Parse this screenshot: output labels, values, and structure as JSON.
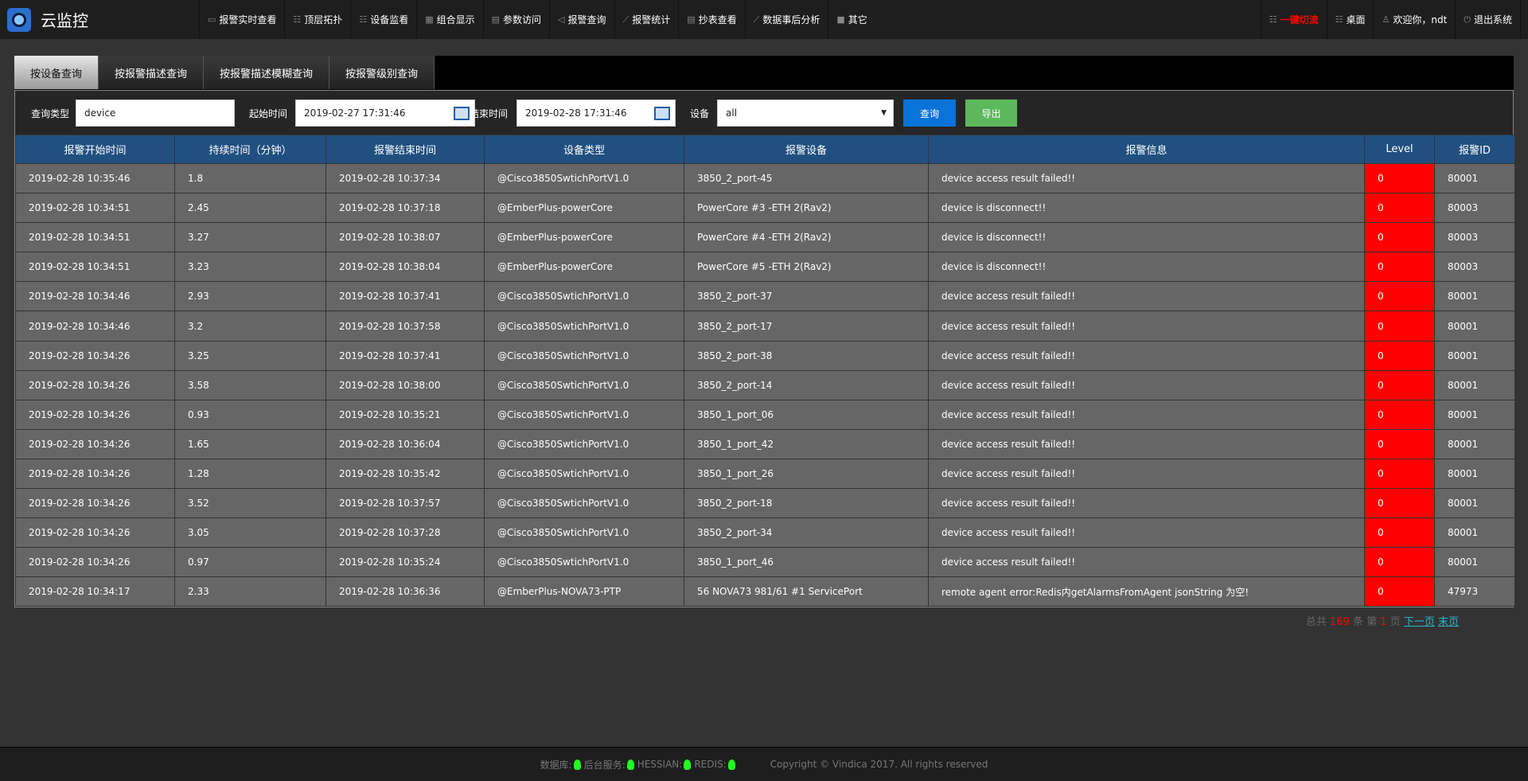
{
  "app": {
    "title": "云监控"
  },
  "nav": {
    "items": [
      {
        "icon": "monitor-icon",
        "label": "报警实时查看"
      },
      {
        "icon": "list-icon",
        "label": "顶层拓扑"
      },
      {
        "icon": "list-icon",
        "label": "设备监看"
      },
      {
        "icon": "grid-icon",
        "label": "组合显示"
      },
      {
        "icon": "doc-icon",
        "label": "参数访问"
      },
      {
        "icon": "speaker-icon",
        "label": "报警查询"
      },
      {
        "icon": "chart-icon",
        "label": "报警统计"
      },
      {
        "icon": "doc-icon",
        "label": "抄表查看"
      },
      {
        "icon": "chart-icon",
        "label": "数据事后分析"
      },
      {
        "icon": "apps-icon",
        "label": "其它"
      }
    ],
    "right": [
      {
        "icon": "list-icon",
        "label": "一键切流",
        "color": "#ff0000"
      },
      {
        "icon": "list-icon",
        "label": "桌面"
      },
      {
        "icon": "users-icon",
        "label": "欢迎你，ndt"
      },
      {
        "icon": "power-icon",
        "label": "退出系统"
      }
    ]
  },
  "tabs": [
    {
      "label": "按设备查询",
      "active": true
    },
    {
      "label": "按报警描述查询"
    },
    {
      "label": "按报警描述模糊查询"
    },
    {
      "label": "按报警级别查询"
    }
  ],
  "filter": {
    "type_label": "查询类型",
    "type_value": "device",
    "start_label": "起始时间",
    "start_value": "2019-02-27 17:31:46",
    "end_label": "结束时间",
    "end_value": "2019-02-28 17:31:46",
    "device_label": "设备",
    "device_value": "all",
    "query_button": "查询",
    "export_button": "导出",
    "query_color": "#0a73d9",
    "export_color": "#5cb85c"
  },
  "table": {
    "headers": [
      "报警开始时间",
      "持续时间（分钟）",
      "报警结束时间",
      "设备类型",
      "报警设备",
      "报警信息",
      "Level",
      "报警ID"
    ],
    "rows": [
      [
        "2019-02-28 10:35:46",
        "1.8",
        "2019-02-28 10:37:34",
        "@Cisco3850SwtichPortV1.0",
        "3850_2_port-45",
        "device access result failed!!",
        "0",
        "80001"
      ],
      [
        "2019-02-28 10:34:51",
        "2.45",
        "2019-02-28 10:37:18",
        "@EmberPlus-powerCore",
        "PowerCore #3 -ETH 2(Rav2)",
        "device is disconnect!!",
        "0",
        "80003"
      ],
      [
        "2019-02-28 10:34:51",
        "3.27",
        "2019-02-28 10:38:07",
        "@EmberPlus-powerCore",
        "PowerCore #4 -ETH 2(Rav2)",
        "device is disconnect!!",
        "0",
        "80003"
      ],
      [
        "2019-02-28 10:34:51",
        "3.23",
        "2019-02-28 10:38:04",
        "@EmberPlus-powerCore",
        "PowerCore #5 -ETH 2(Rav2)",
        "device is disconnect!!",
        "0",
        "80003"
      ],
      [
        "2019-02-28 10:34:46",
        "2.93",
        "2019-02-28 10:37:41",
        "@Cisco3850SwtichPortV1.0",
        "3850_2_port-37",
        "device access result failed!!",
        "0",
        "80001"
      ],
      [
        "2019-02-28 10:34:46",
        "3.2",
        "2019-02-28 10:37:58",
        "@Cisco3850SwtichPortV1.0",
        "3850_2_port-17",
        "device access result failed!!",
        "0",
        "80001"
      ],
      [
        "2019-02-28 10:34:26",
        "3.25",
        "2019-02-28 10:37:41",
        "@Cisco3850SwtichPortV1.0",
        "3850_2_port-38",
        "device access result failed!!",
        "0",
        "80001"
      ],
      [
        "2019-02-28 10:34:26",
        "3.58",
        "2019-02-28 10:38:00",
        "@Cisco3850SwtichPortV1.0",
        "3850_2_port-14",
        "device access result failed!!",
        "0",
        "80001"
      ],
      [
        "2019-02-28 10:34:26",
        "0.93",
        "2019-02-28 10:35:21",
        "@Cisco3850SwtichPortV1.0",
        "3850_1_port_06",
        "device access result failed!!",
        "0",
        "80001"
      ],
      [
        "2019-02-28 10:34:26",
        "1.65",
        "2019-02-28 10:36:04",
        "@Cisco3850SwtichPortV1.0",
        "3850_1_port_42",
        "device access result failed!!",
        "0",
        "80001"
      ],
      [
        "2019-02-28 10:34:26",
        "1.28",
        "2019-02-28 10:35:42",
        "@Cisco3850SwtichPortV1.0",
        "3850_1_port_26",
        "device access result failed!!",
        "0",
        "80001"
      ],
      [
        "2019-02-28 10:34:26",
        "3.52",
        "2019-02-28 10:37:57",
        "@Cisco3850SwtichPortV1.0",
        "3850_2_port-18",
        "device access result failed!!",
        "0",
        "80001"
      ],
      [
        "2019-02-28 10:34:26",
        "3.05",
        "2019-02-28 10:37:28",
        "@Cisco3850SwtichPortV1.0",
        "3850_2_port-34",
        "device access result failed!!",
        "0",
        "80001"
      ],
      [
        "2019-02-28 10:34:26",
        "0.97",
        "2019-02-28 10:35:24",
        "@Cisco3850SwtichPortV1.0",
        "3850_1_port_46",
        "device access result failed!!",
        "0",
        "80001"
      ],
      [
        "2019-02-28 10:34:17",
        "2.33",
        "2019-02-28 10:36:36",
        "@EmberPlus-NOVA73-PTP",
        "56 NOVA73 981/61 #1 ServicePort",
        "remote agent error:Redis内getAlarmsFromAgent jsonString 为空!",
        "0",
        "47973"
      ]
    ]
  },
  "pager": {
    "total_prefix": "总共",
    "total": "169",
    "total_suffix": "条 第",
    "page": "1",
    "page_suffix": "页",
    "next": "下一页",
    "last": "末页"
  },
  "footer": {
    "db": "数据库:",
    "backend": "后台服务:",
    "hessian": "HESSIAN:",
    "redis": "REDIS:",
    "copyright": "Copyright © Vindica 2017. All rights reserved",
    "status_color": "#22ff22"
  }
}
